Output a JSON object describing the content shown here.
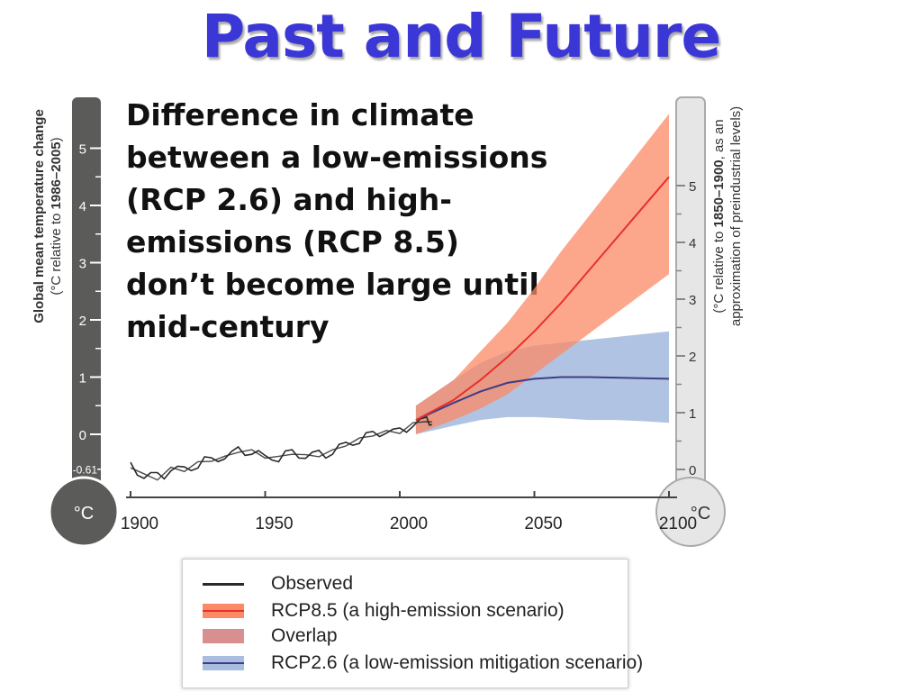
{
  "page": {
    "title": "Past and Future",
    "subtitle_lines": [
      "Difference in climate",
      "between a low-emissions",
      "(RCP 2.6) and high-",
      "emissions (RCP 8.5)",
      "don’t become large until",
      "mid-century"
    ]
  },
  "colors": {
    "title": "#3b36d6",
    "observed": "#2a2a2a",
    "rcp85_line": "#e8302a",
    "rcp85_band": "#fb8a66",
    "overlap": "#d98f8f",
    "rcp26_line": "#3e3d85",
    "rcp26_band": "#a8bddf",
    "left_thermo": "#5b5b5a",
    "right_thermo": "#e6e6e6"
  },
  "chart_data": {
    "type": "line",
    "x_ticks": [
      "1900",
      "1950",
      "2000",
      "2050",
      "2100"
    ],
    "xlim": [
      1900,
      2100
    ],
    "left_axis": {
      "label_line1": "Global mean temperature change",
      "label_line2_prefix": "(°C relative to ",
      "label_line2_bold": "1986–2005",
      "label_line2_suffix": ")",
      "ticks": [
        "5",
        "4",
        "3",
        "2",
        "1",
        "0"
      ],
      "special_tick": "-0.61",
      "unit": "°C",
      "ylim": [
        -0.61,
        5
      ]
    },
    "right_axis": {
      "label_line1_prefix": "(°C relative to ",
      "label_line1_bold": "1850–1900",
      "label_line1_suffix": ", as an",
      "label_line2": "approximation of preindustrial levels)",
      "ticks": [
        "5",
        "4",
        "3",
        "2",
        "1",
        "0"
      ],
      "unit": "°C",
      "ylim": [
        0,
        5
      ]
    },
    "series": [
      {
        "name": "Observed",
        "years": [
          1900,
          1905,
          1910,
          1915,
          1920,
          1925,
          1930,
          1935,
          1940,
          1945,
          1950,
          1955,
          1960,
          1965,
          1970,
          1975,
          1980,
          1985,
          1990,
          1995,
          2000,
          2005,
          2010,
          2012
        ],
        "values": [
          -0.55,
          -0.72,
          -0.75,
          -0.6,
          -0.62,
          -0.52,
          -0.45,
          -0.4,
          -0.28,
          -0.3,
          -0.4,
          -0.42,
          -0.32,
          -0.38,
          -0.35,
          -0.3,
          -0.18,
          -0.1,
          0.0,
          0.05,
          0.05,
          0.18,
          0.25,
          0.2
        ]
      },
      {
        "name": "RCP8.5 (a high-emission scenario)",
        "years": [
          2006,
          2020,
          2030,
          2040,
          2050,
          2060,
          2070,
          2080,
          2090,
          2100
        ],
        "mean": [
          0.25,
          0.6,
          0.95,
          1.35,
          1.8,
          2.3,
          2.85,
          3.4,
          3.95,
          4.5
        ],
        "low": [
          0.0,
          0.25,
          0.45,
          0.7,
          1.05,
          1.4,
          1.75,
          2.1,
          2.45,
          2.8
        ],
        "high": [
          0.5,
          0.95,
          1.45,
          1.95,
          2.55,
          3.2,
          3.8,
          4.4,
          5.0,
          5.6
        ]
      },
      {
        "name": "RCP2.6 (a low-emission mitigation scenario)",
        "years": [
          2006,
          2020,
          2030,
          2040,
          2050,
          2060,
          2070,
          2080,
          2090,
          2100
        ],
        "mean": [
          0.25,
          0.55,
          0.75,
          0.9,
          0.97,
          1.0,
          1.0,
          0.99,
          0.98,
          0.97
        ],
        "low": [
          0.0,
          0.15,
          0.25,
          0.3,
          0.3,
          0.28,
          0.25,
          0.25,
          0.23,
          0.2
        ],
        "high": [
          0.5,
          0.95,
          1.25,
          1.45,
          1.55,
          1.6,
          1.65,
          1.7,
          1.75,
          1.8
        ]
      }
    ]
  },
  "legend": {
    "observed": "Observed",
    "rcp85": "RCP8.5 (a high-emission scenario)",
    "overlap": "Overlap",
    "rcp26": "RCP2.6 (a low-emission mitigation scenario)"
  }
}
